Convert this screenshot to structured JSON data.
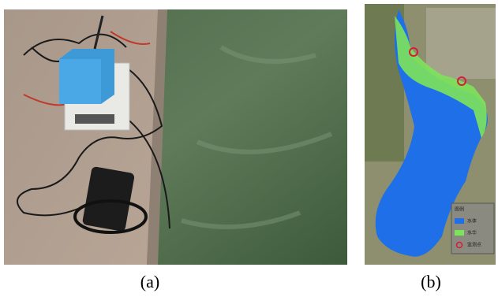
{
  "figure": {
    "panels": [
      {
        "caption": "(a)"
      },
      {
        "caption": "(b)",
        "legend": {
          "title": "图例",
          "items": [
            "水体",
            "水华",
            "监测点"
          ]
        }
      }
    ]
  }
}
